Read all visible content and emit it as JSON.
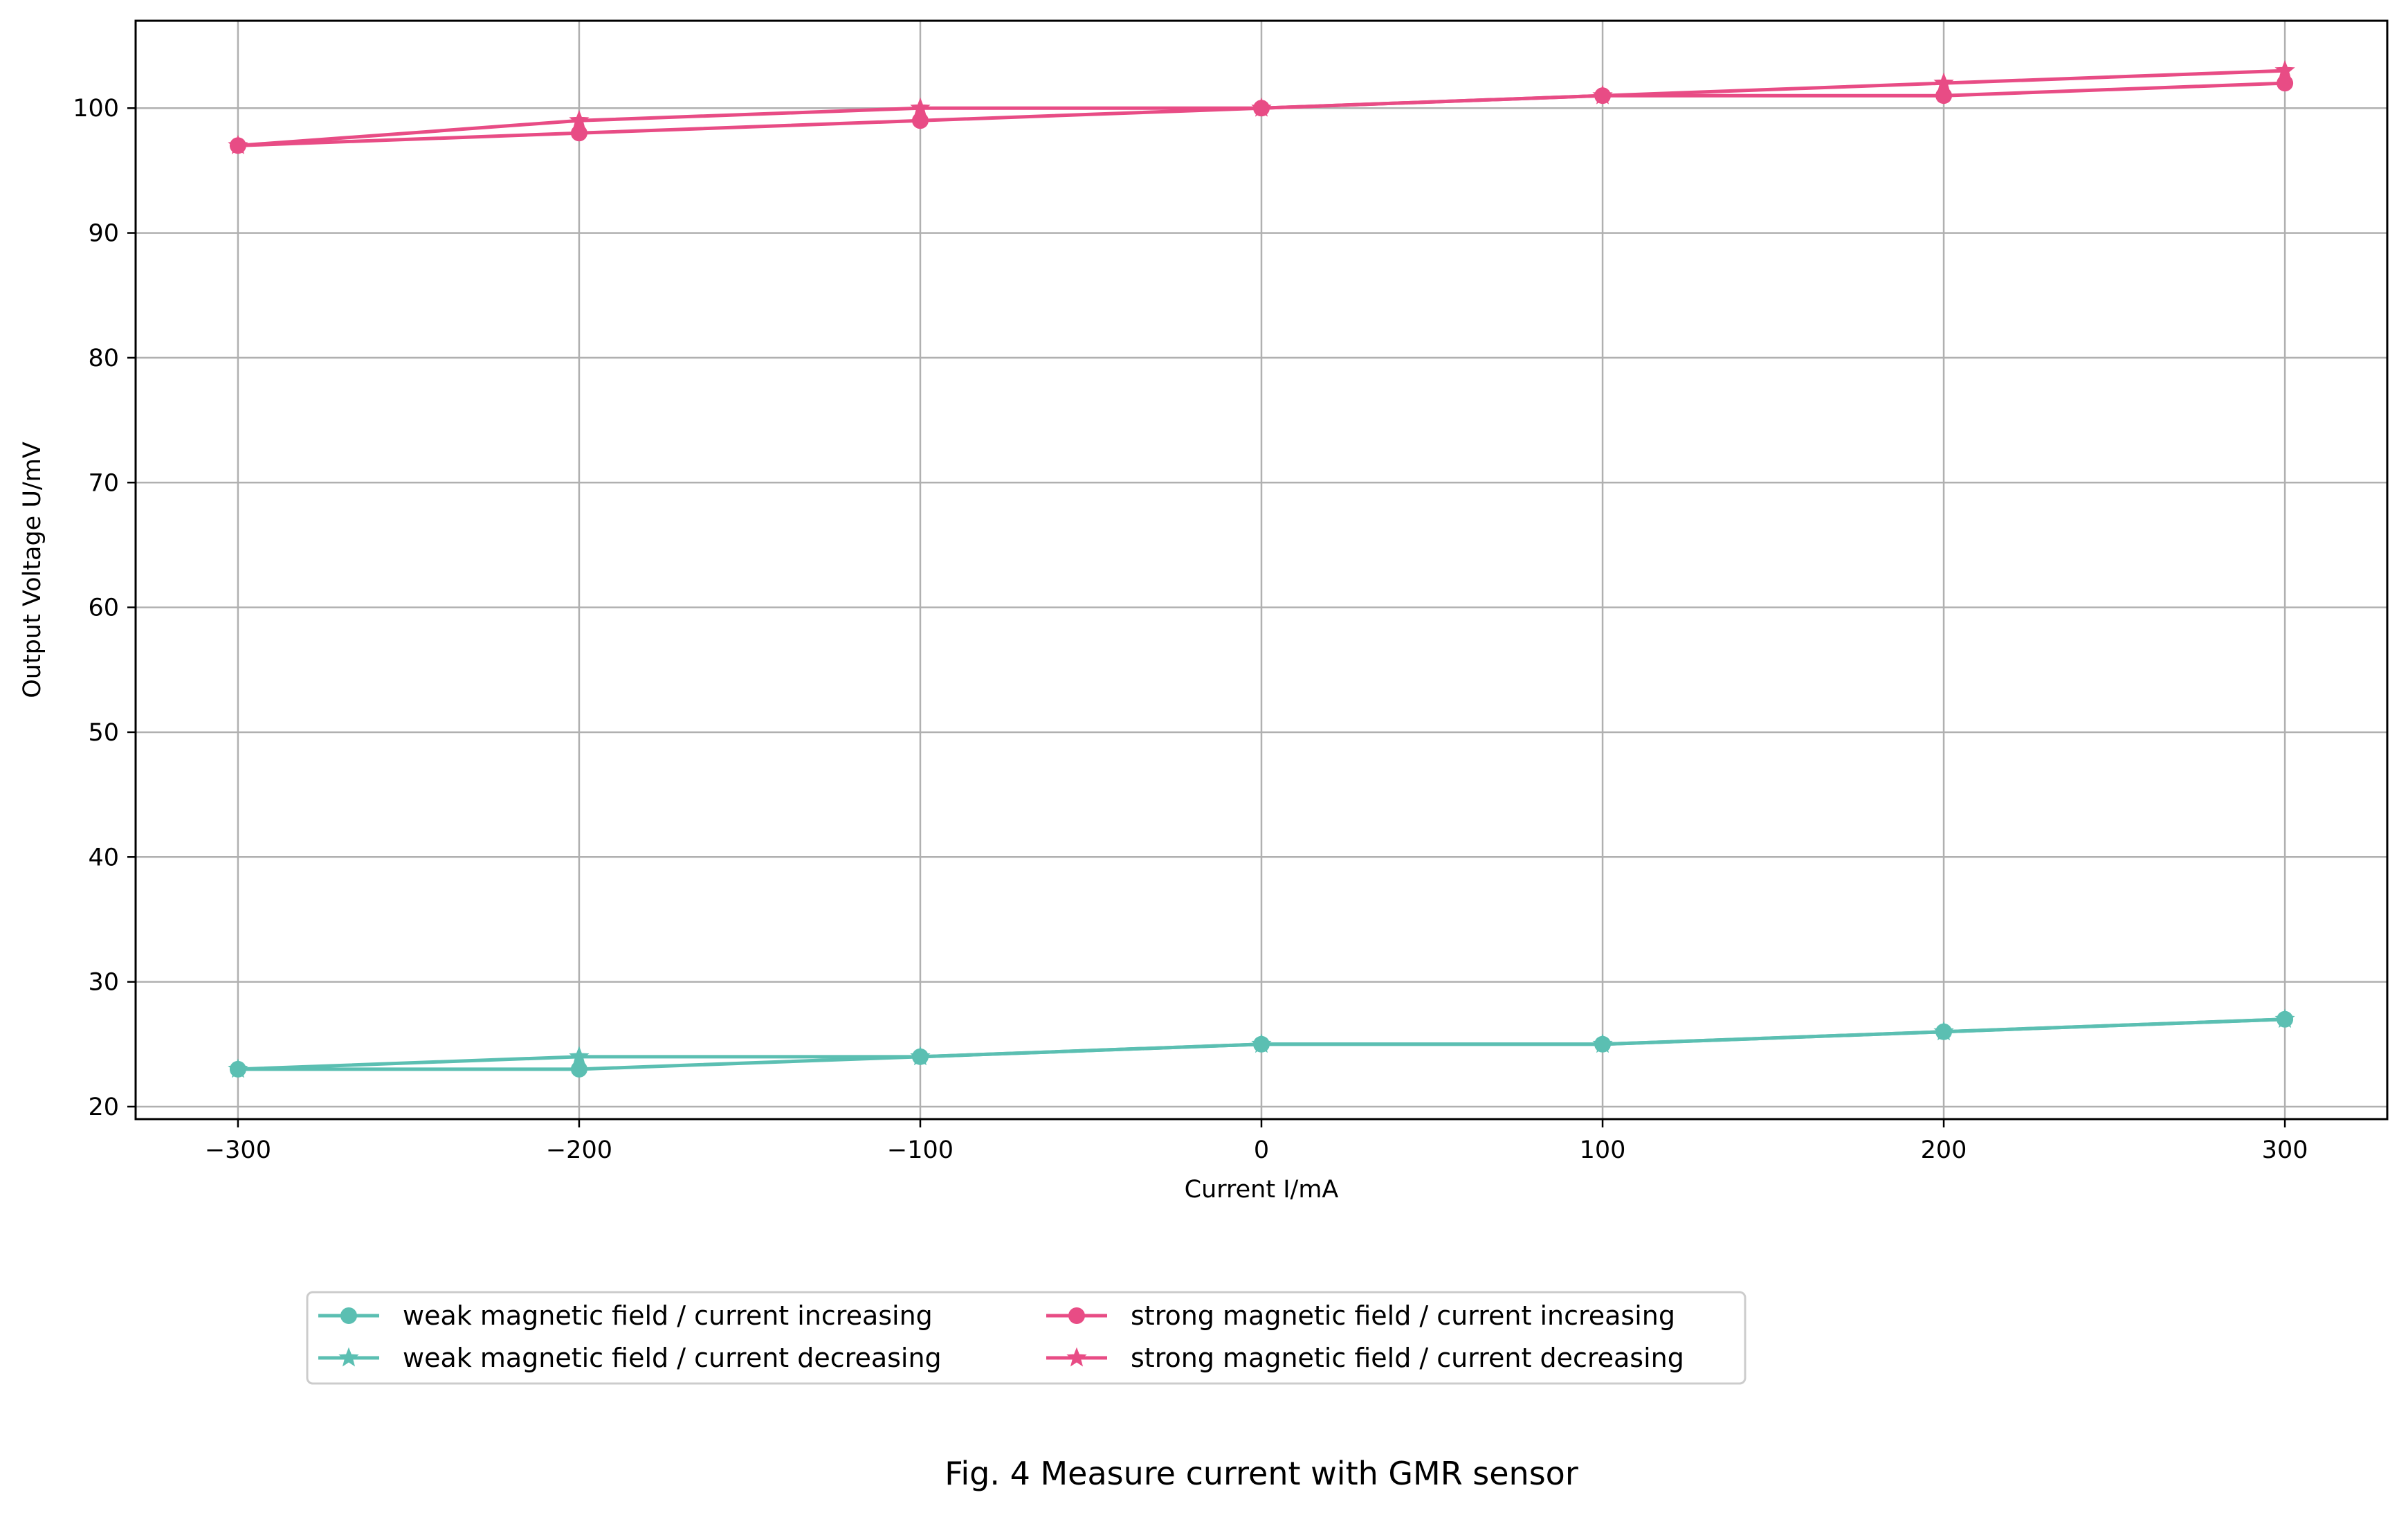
{
  "chart_data": {
    "type": "line",
    "title": "",
    "caption": "Fig. 4 Measure current with GMR sensor",
    "xlabel": "Current I/mA",
    "ylabel": "Output Voltage U/mV",
    "x": [
      -300,
      -200,
      -100,
      0,
      100,
      200,
      300
    ],
    "xlim": [
      -330,
      330
    ],
    "ylim": [
      19,
      107
    ],
    "xticks": [
      -300,
      -200,
      -100,
      0,
      100,
      200,
      300
    ],
    "xtick_labels": [
      "−300",
      "−200",
      "−100",
      "0",
      "100",
      "200",
      "300"
    ],
    "yticks": [
      20,
      30,
      40,
      50,
      60,
      70,
      80,
      90,
      100
    ],
    "ytick_labels": [
      "20",
      "30",
      "40",
      "50",
      "60",
      "70",
      "80",
      "90",
      "100"
    ],
    "grid": true,
    "legend_position": "bottom-center, below plot, two columns",
    "series": [
      {
        "name": "weak magnetic field / current increasing",
        "color": "#5bbfb2",
        "marker": "circle",
        "values": [
          23,
          23,
          24,
          25,
          25,
          26,
          27
        ]
      },
      {
        "name": "weak magnetic field / current decreasing",
        "color": "#5bbfb2",
        "marker": "star",
        "values": [
          23,
          24,
          24,
          25,
          25,
          26,
          27
        ]
      },
      {
        "name": "strong magnetic field / current increasing",
        "color": "#e84c85",
        "marker": "circle",
        "values": [
          97,
          98,
          99,
          100,
          101,
          101,
          102
        ]
      },
      {
        "name": "strong magnetic field / current decreasing",
        "color": "#e84c85",
        "marker": "star",
        "values": [
          97,
          99,
          100,
          100,
          101,
          102,
          103
        ]
      }
    ]
  }
}
